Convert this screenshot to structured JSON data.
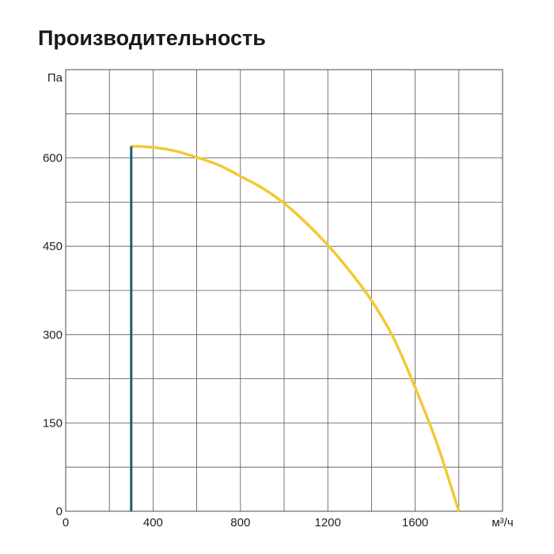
{
  "title": "Производительность",
  "chart_data": {
    "type": "line",
    "title": "Производительность",
    "xlabel": "м³/ч",
    "ylabel": "Па",
    "xlim": [
      0,
      2000
    ],
    "ylim": [
      0,
      750
    ],
    "x_ticks": [
      {
        "value": 0,
        "label": "0"
      },
      {
        "value": 400,
        "label": "400"
      },
      {
        "value": 800,
        "label": "800"
      },
      {
        "value": 1200,
        "label": "1200"
      },
      {
        "value": 1600,
        "label": "1600"
      }
    ],
    "y_ticks": [
      {
        "value": 0,
        "label": "0"
      },
      {
        "value": 150,
        "label": "150"
      },
      {
        "value": 300,
        "label": "300"
      },
      {
        "value": 450,
        "label": "450"
      },
      {
        "value": 600,
        "label": "600"
      }
    ],
    "grid": true,
    "x_grid_step": 200,
    "y_grid_step": 75,
    "series": [
      {
        "color": "#f2c935",
        "points": [
          [
            300,
            620
          ],
          [
            400,
            618
          ],
          [
            500,
            612
          ],
          [
            600,
            601
          ],
          [
            700,
            588
          ],
          [
            800,
            569
          ],
          [
            900,
            549
          ],
          [
            1000,
            523
          ],
          [
            1100,
            490
          ],
          [
            1200,
            452
          ],
          [
            1300,
            408
          ],
          [
            1400,
            358
          ],
          [
            1500,
            295
          ],
          [
            1600,
            210
          ],
          [
            1700,
            115
          ],
          [
            1800,
            0
          ]
        ]
      },
      {
        "color": "#1b5e73",
        "points": [
          [
            300,
            0
          ],
          [
            300,
            620
          ]
        ]
      }
    ]
  }
}
